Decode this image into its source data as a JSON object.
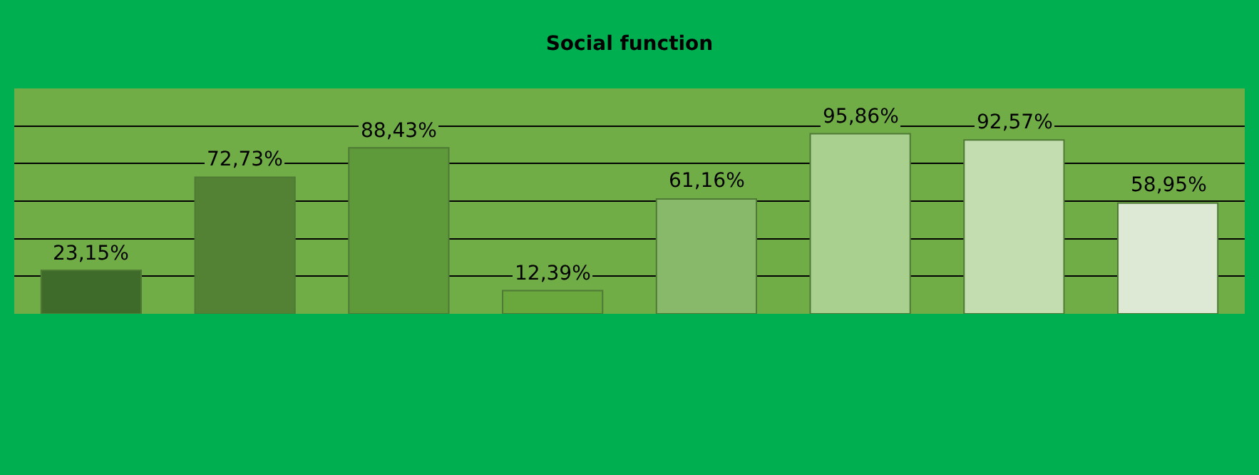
{
  "chart_data": {
    "type": "bar",
    "title": "Social function",
    "categories": [
      null,
      null,
      null,
      null,
      null,
      null,
      null,
      null
    ],
    "values": [
      23.15,
      72.73,
      88.43,
      12.39,
      61.16,
      95.86,
      92.57,
      58.95
    ],
    "value_labels": [
      "23,15%",
      "72,73%",
      "88,43%",
      "12,39%",
      "61,16%",
      "95,86%",
      "92,57%",
      "58,95%"
    ],
    "colors": [
      "#3f6b2a",
      "#548235",
      "#5f9a3a",
      "#6aa83e",
      "#88b96a",
      "#a9d08e",
      "#c3ddb0",
      "#dde9d4"
    ],
    "ylim": [
      0,
      120
    ],
    "yticks": [
      {
        "value": 0,
        "label": null
      },
      {
        "value": 20,
        "label": null
      },
      {
        "value": 40,
        "label": null
      },
      {
        "value": 60,
        "label": null
      },
      {
        "value": 80,
        "label": null
      },
      {
        "value": 100,
        "label": null
      },
      {
        "value": 120,
        "label": null
      }
    ],
    "grid": "y"
  }
}
